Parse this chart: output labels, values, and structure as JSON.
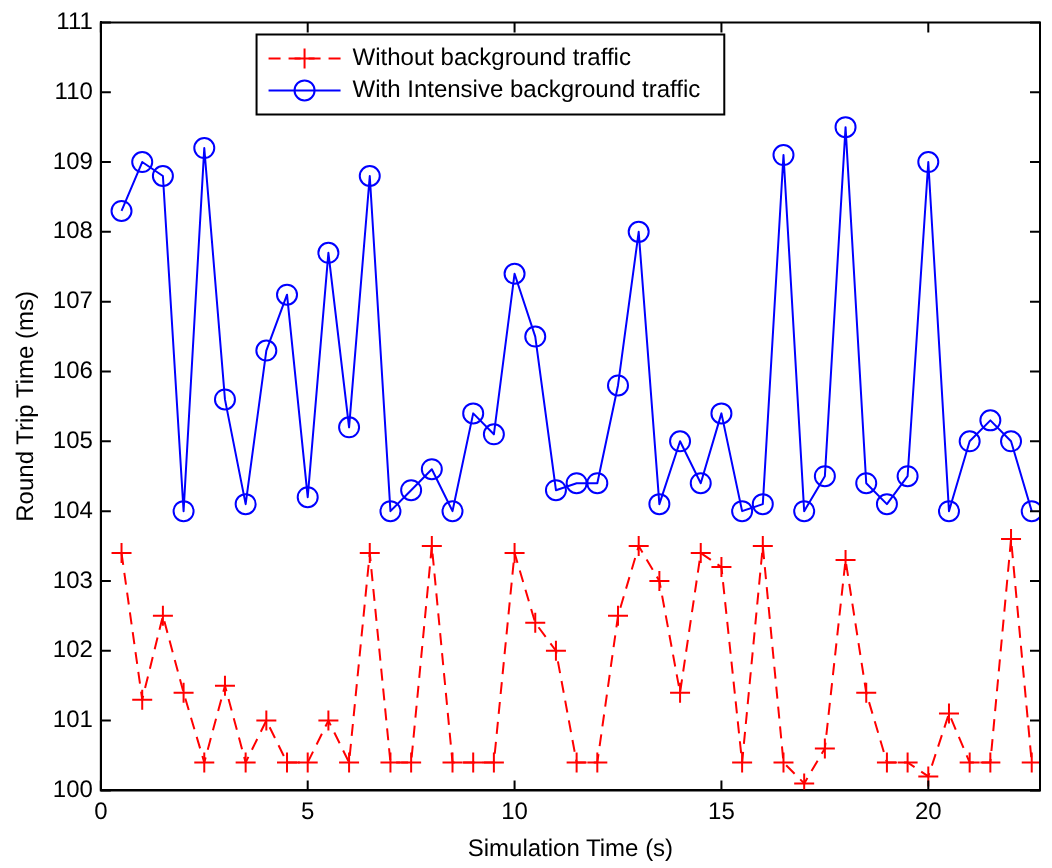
{
  "chart_data": {
    "type": "line",
    "xlabel": "Simulation Time (s)",
    "ylabel": "Round Trip Time (ms)",
    "x": [
      0.5,
      1,
      1.5,
      2,
      2.5,
      3,
      3.5,
      4,
      4.5,
      5,
      5.5,
      6,
      6.5,
      7,
      7.5,
      8,
      8.5,
      9,
      9.5,
      10,
      10.5,
      11,
      11.5,
      12,
      12.5,
      13,
      13.5,
      14,
      14.5,
      15,
      15.5,
      16,
      16.5,
      17,
      17.5,
      18,
      18.5,
      19,
      19.5,
      20,
      20.5,
      21,
      21.5,
      22,
      22.5
    ],
    "series": [
      {
        "name": "Without background traffic",
        "color": "#ff0000",
        "marker": "cross",
        "line_style": "dashed",
        "values": [
          103.4,
          101.3,
          102.5,
          101.4,
          100.4,
          101.5,
          100.4,
          101.0,
          100.4,
          100.4,
          101.0,
          100.4,
          103.4,
          100.4,
          100.4,
          103.5,
          100.4,
          100.4,
          100.4,
          103.4,
          102.4,
          102.0,
          100.4,
          100.4,
          102.5,
          103.5,
          103.0,
          101.4,
          103.4,
          103.2,
          100.4,
          103.5,
          100.4,
          100.1,
          100.6,
          103.3,
          101.4,
          100.4,
          100.4,
          100.2,
          101.1,
          100.4,
          100.4,
          103.6,
          100.4
        ]
      },
      {
        "name": "With Intensive background traffic",
        "color": "#0000ff",
        "marker": "circle",
        "line_style": "solid",
        "values": [
          108.3,
          109.0,
          108.8,
          104.0,
          109.2,
          105.6,
          104.1,
          106.3,
          107.1,
          104.2,
          107.7,
          105.2,
          108.8,
          104.0,
          104.3,
          104.6,
          104.0,
          105.4,
          105.1,
          107.4,
          106.5,
          104.3,
          104.4,
          104.4,
          105.8,
          108.0,
          104.1,
          105.0,
          104.4,
          105.4,
          104.0,
          104.1,
          109.1,
          104.0,
          104.5,
          109.5,
          104.4,
          104.1,
          104.5,
          109.0,
          104.0,
          105.0,
          105.3,
          105.0,
          104.0
        ]
      }
    ],
    "xlim": [
      0,
      22.7
    ],
    "xticks": [
      0,
      5,
      10,
      15,
      20
    ],
    "ylim": [
      100,
      111
    ],
    "yticks": [
      100,
      101,
      102,
      103,
      104,
      105,
      106,
      107,
      108,
      109,
      110,
      111
    ],
    "grid": false,
    "legend": "top"
  }
}
